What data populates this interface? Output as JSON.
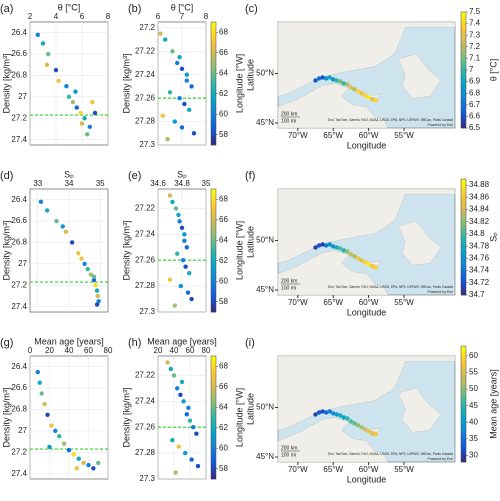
{
  "chart_data": [
    {
      "type": "scatter",
      "panel_label": "(a)",
      "xlabel": "θ [°C]",
      "ylabel": "Density [kg/m³]",
      "xlim": [
        2,
        8
      ],
      "xticks": [
        2,
        4,
        6,
        8
      ],
      "ylim": [
        26.3,
        27.45
      ],
      "yticks": [
        26.4,
        26.6,
        26.8,
        27,
        27.2,
        27.4
      ],
      "yreverse": true,
      "grid": true,
      "hline": 27.17,
      "hline_color": "#2bd42b",
      "clim": [
        57,
        69
      ],
      "x": [
        2.6,
        3.0,
        3.4,
        3.3,
        4.0,
        4.2,
        4.8,
        5.0,
        5.3,
        5.6,
        5.9,
        6.2,
        6.0,
        6.6,
        7.0,
        6.4,
        5.5,
        6.8
      ],
      "y": [
        26.42,
        26.5,
        26.6,
        26.7,
        26.75,
        26.85,
        26.9,
        27.0,
        27.05,
        27.1,
        27.15,
        27.2,
        27.25,
        27.28,
        27.15,
        27.35,
        26.95,
        27.05
      ],
      "c": [
        60,
        62,
        64,
        66,
        58,
        67,
        60,
        63,
        65,
        59,
        68,
        62,
        66,
        60,
        58,
        64,
        61,
        67
      ]
    },
    {
      "type": "scatter",
      "panel_label": "(b)",
      "xlabel": "θ [°C]",
      "ylabel": "Density [kg/m³]",
      "xlim": [
        6,
        8
      ],
      "xticks": [
        6,
        7,
        8
      ],
      "ylim": [
        27.195,
        27.3
      ],
      "yticks": [
        27.2,
        27.22,
        27.24,
        27.26,
        27.28,
        27.3
      ],
      "yreverse": true,
      "grid": true,
      "hline": 27.26,
      "hline_color": "#2bd42b",
      "clim": [
        57,
        69
      ],
      "colorbar_label": "Longitude [°W]",
      "cticks": [
        58,
        60,
        62,
        64,
        66,
        68
      ],
      "x": [
        6.1,
        6.3,
        6.6,
        6.8,
        7.0,
        7.2,
        7.4,
        6.5,
        6.9,
        7.1,
        7.3,
        6.2,
        6.7,
        7.0,
        7.5,
        6.4,
        7.2,
        6.9
      ],
      "y": [
        27.205,
        27.21,
        27.22,
        27.23,
        27.235,
        27.24,
        27.25,
        27.255,
        27.26,
        27.265,
        27.27,
        27.275,
        27.28,
        27.285,
        27.29,
        27.295,
        27.245,
        27.225
      ],
      "c": [
        66,
        62,
        64,
        60,
        58,
        61,
        59,
        63,
        60,
        58,
        62,
        67,
        61,
        59,
        58,
        65,
        60,
        62
      ]
    },
    {
      "type": "map",
      "panel_label": "(c)",
      "xlabel": "Longitude",
      "ylabel": "Latitude",
      "xlim": [
        -72.8,
        -47.8
      ],
      "ylim": [
        44.5,
        55.2
      ],
      "xticks": [
        {
          "value": -70,
          "label": "70°W"
        },
        {
          "value": -65,
          "label": "65°W"
        },
        {
          "value": -60,
          "label": "60°W"
        },
        {
          "value": -55,
          "label": "55°W"
        }
      ],
      "yticks": [
        {
          "value": 45,
          "label": "45°N"
        },
        {
          "value": 50,
          "label": "50°N"
        }
      ],
      "clim": [
        6.5,
        7.5
      ],
      "colorbar_label": "θ [°C]",
      "cticks": [
        6.5,
        6.6,
        6.7,
        6.8,
        6.9,
        7,
        7.1,
        7.2,
        7.3,
        7.4,
        7.5
      ],
      "scale_labels": [
        "200 km",
        "100 mi"
      ],
      "attribution": "Esri, TomTom, Garmin, FAO, NOAA, USGS, EPA, NPS, USFWS, NRCan, Parks Canada",
      "credit": "Powered by Esri",
      "x": [
        -67.5,
        -67,
        -66.5,
        -66,
        -65.5,
        -65,
        -64.5,
        -64,
        -63.5,
        -63,
        -62.5,
        -62,
        -61.5,
        -61,
        -60.5,
        -60,
        -59.5,
        -59
      ],
      "y": [
        49.3,
        49.5,
        49.6,
        49.5,
        49.6,
        49.4,
        49.3,
        49.2,
        49.0,
        48.9,
        48.6,
        48.4,
        48.2,
        48.0,
        47.8,
        47.6,
        47.4,
        47.3
      ],
      "c": [
        6.6,
        6.7,
        6.6,
        6.8,
        6.9,
        6.8,
        7.0,
        7.1,
        7.0,
        7.2,
        7.3,
        7.2,
        7.4,
        7.3,
        7.4,
        7.45,
        7.3,
        7.4
      ]
    },
    {
      "type": "scatter",
      "panel_label": "(d)",
      "xlabel": "Sₚ",
      "ylabel": "Density [kg/m³]",
      "xlim": [
        32.75,
        35.25
      ],
      "xticks": [
        33,
        34,
        35
      ],
      "ylim": [
        26.3,
        27.45
      ],
      "yticks": [
        26.4,
        26.6,
        26.8,
        27,
        27.2,
        27.4
      ],
      "yreverse": true,
      "grid": true,
      "hline": 27.17,
      "hline_color": "#2bd42b",
      "clim": [
        57,
        69
      ],
      "x": [
        33.1,
        33.3,
        33.6,
        33.9,
        34.1,
        34.3,
        34.5,
        34.6,
        34.7,
        34.8,
        34.85,
        34.9,
        34.92,
        34.95,
        34.9,
        34.8,
        33.8,
        34.4
      ],
      "y": [
        26.42,
        26.5,
        26.6,
        26.7,
        26.8,
        26.9,
        27.0,
        27.05,
        27.1,
        27.15,
        27.2,
        27.25,
        27.3,
        27.35,
        27.38,
        27.12,
        26.65,
        26.95
      ],
      "c": [
        60,
        62,
        64,
        66,
        58,
        67,
        60,
        63,
        65,
        59,
        68,
        62,
        66,
        60,
        58,
        64,
        61,
        67
      ]
    },
    {
      "type": "scatter",
      "panel_label": "(e)",
      "xlabel": "Sₚ",
      "ylabel": "Density [kg/m³]",
      "xlim": [
        34.6,
        35
      ],
      "xticks": [
        34.6,
        34.8,
        35
      ],
      "ylim": [
        27.205,
        27.3
      ],
      "yticks": [
        27.22,
        27.24,
        27.26,
        27.28,
        27.3
      ],
      "yreverse": true,
      "grid": true,
      "hline": 27.26,
      "hline_color": "#2bd42b",
      "clim": [
        57,
        69
      ],
      "colorbar_label": "Longitude [°W]",
      "cticks": [
        58,
        60,
        62,
        64,
        66,
        68
      ],
      "x": [
        34.7,
        34.72,
        34.75,
        34.78,
        34.8,
        34.82,
        34.84,
        34.76,
        34.81,
        34.83,
        34.86,
        34.7,
        34.79,
        34.85,
        34.88,
        34.74,
        34.82,
        34.77
      ],
      "y": [
        27.21,
        27.215,
        27.22,
        27.23,
        27.235,
        27.24,
        27.25,
        27.255,
        27.26,
        27.265,
        27.27,
        27.275,
        27.28,
        27.285,
        27.29,
        27.295,
        27.245,
        27.225
      ],
      "c": [
        66,
        62,
        64,
        60,
        58,
        61,
        59,
        63,
        60,
        58,
        62,
        67,
        61,
        59,
        58,
        65,
        60,
        62
      ]
    },
    {
      "type": "map",
      "panel_label": "(f)",
      "xlabel": "Longitude",
      "ylabel": "Latitude",
      "xlim": [
        -72.8,
        -47.8
      ],
      "ylim": [
        44.5,
        55.2
      ],
      "xticks": [
        {
          "value": -70,
          "label": "70°W"
        },
        {
          "value": -65,
          "label": "65°W"
        },
        {
          "value": -60,
          "label": "60°W"
        },
        {
          "value": -55,
          "label": "55°W"
        }
      ],
      "yticks": [
        {
          "value": 45,
          "label": "45°N"
        },
        {
          "value": 50,
          "label": "50°N"
        }
      ],
      "clim": [
        34.7,
        34.89
      ],
      "colorbar_label": "Sₚ",
      "cticks": [
        34.7,
        34.72,
        34.74,
        34.76,
        34.78,
        34.8,
        34.82,
        34.84,
        34.86,
        34.88
      ],
      "scale_labels": [
        "200 km",
        "100 mi"
      ],
      "attribution": "Esri, TomTom, Garmin, FAO, NOAA, USGS, EPA, NPS, USFWS, NRCan, Parks Canada",
      "credit": "Powered by Esri",
      "x": [
        -67.5,
        -67,
        -66.5,
        -66,
        -65.5,
        -65,
        -64.5,
        -64,
        -63.5,
        -63,
        -62.5,
        -62,
        -61.5,
        -61,
        -60.5,
        -60,
        -59.5,
        -59
      ],
      "y": [
        49.3,
        49.5,
        49.6,
        49.5,
        49.6,
        49.4,
        49.3,
        49.2,
        49.0,
        48.9,
        48.6,
        48.4,
        48.2,
        48.0,
        47.8,
        47.6,
        47.4,
        47.3
      ],
      "c": [
        34.71,
        34.72,
        34.71,
        34.74,
        34.75,
        34.76,
        34.78,
        34.8,
        34.79,
        34.82,
        34.84,
        34.83,
        34.86,
        34.85,
        34.87,
        34.88,
        34.86,
        34.87
      ]
    },
    {
      "type": "scatter",
      "panel_label": "(g)",
      "xlabel": "Mean age [years]",
      "ylabel": "Density [kg/m³]",
      "xlim": [
        0,
        80
      ],
      "xticks": [
        0,
        20,
        40,
        60,
        80
      ],
      "ylim": [
        26.3,
        27.45
      ],
      "yticks": [
        26.4,
        26.6,
        26.8,
        27,
        27.2,
        27.4
      ],
      "yreverse": true,
      "grid": true,
      "hline": 27.17,
      "hline_color": "#2bd42b",
      "clim": [
        57,
        69
      ],
      "x": [
        8,
        10,
        12,
        15,
        18,
        22,
        26,
        30,
        35,
        40,
        45,
        50,
        55,
        60,
        65,
        70,
        20,
        48
      ],
      "y": [
        26.45,
        26.55,
        26.65,
        26.75,
        26.85,
        26.95,
        27.0,
        27.05,
        27.12,
        27.18,
        27.22,
        27.26,
        27.3,
        27.32,
        27.35,
        27.3,
        27.15,
        27.35
      ],
      "c": [
        60,
        62,
        64,
        66,
        58,
        67,
        60,
        63,
        65,
        59,
        68,
        62,
        66,
        60,
        58,
        64,
        61,
        67
      ]
    },
    {
      "type": "scatter",
      "panel_label": "(h)",
      "xlabel": "Mean age [years]",
      "ylabel": "Density [kg/m³]",
      "xlim": [
        20,
        80
      ],
      "xticks": [
        20,
        40,
        60,
        80
      ],
      "ylim": [
        27.205,
        27.3
      ],
      "yticks": [
        27.22,
        27.24,
        27.26,
        27.28,
        27.3
      ],
      "yreverse": true,
      "grid": true,
      "hline": 27.26,
      "hline_color": "#2bd42b",
      "clim": [
        57,
        69
      ],
      "colorbar_label": "Longitude [°W]",
      "cticks": [
        58,
        60,
        62,
        64,
        66,
        68
      ],
      "x": [
        32,
        36,
        40,
        44,
        48,
        52,
        56,
        60,
        64,
        68,
        38,
        46,
        54,
        62,
        70,
        42,
        58,
        50
      ],
      "y": [
        27.21,
        27.215,
        27.22,
        27.23,
        27.235,
        27.24,
        27.25,
        27.255,
        27.26,
        27.265,
        27.27,
        27.275,
        27.28,
        27.285,
        27.29,
        27.295,
        27.245,
        27.225
      ],
      "c": [
        66,
        62,
        64,
        60,
        58,
        61,
        59,
        63,
        60,
        58,
        62,
        67,
        61,
        59,
        58,
        65,
        60,
        62
      ]
    },
    {
      "type": "map",
      "panel_label": "(i)",
      "xlabel": "Longitude",
      "ylabel": "Latitude",
      "xlim": [
        -72.8,
        -47.8
      ],
      "ylim": [
        44.5,
        55.2
      ],
      "xticks": [
        {
          "value": -70,
          "label": "70°W"
        },
        {
          "value": -65,
          "label": "65°W"
        },
        {
          "value": -60,
          "label": "60°W"
        },
        {
          "value": -55,
          "label": "55°W"
        }
      ],
      "yticks": [
        {
          "value": 45,
          "label": "45°N"
        },
        {
          "value": 50,
          "label": "50°N"
        }
      ],
      "clim": [
        28,
        63
      ],
      "colorbar_label": "Mean age [years]",
      "cticks": [
        30,
        35,
        40,
        45,
        50,
        55,
        60
      ],
      "scale_labels": [
        "200 km",
        "100 mi"
      ],
      "attribution": "Esri, TomTom, Garmin, FAO, NOAA, USGS, EPA, NPS, USFWS, NRCan, Parks Canada",
      "credit": "Powered by Esri",
      "x": [
        -67.5,
        -67,
        -66.5,
        -66,
        -65.5,
        -65,
        -64.5,
        -64,
        -63.5,
        -63,
        -62.5,
        -62,
        -61.5,
        -61,
        -60.5,
        -60,
        -59.5,
        -59
      ],
      "y": [
        49.3,
        49.5,
        49.6,
        49.5,
        49.6,
        49.4,
        49.3,
        49.2,
        49.0,
        48.9,
        48.6,
        48.4,
        48.2,
        48.0,
        47.8,
        47.6,
        47.4,
        47.3
      ],
      "c": [
        30,
        32,
        31,
        34,
        36,
        38,
        40,
        42,
        41,
        45,
        47,
        48,
        50,
        52,
        54,
        56,
        55,
        58
      ]
    }
  ]
}
